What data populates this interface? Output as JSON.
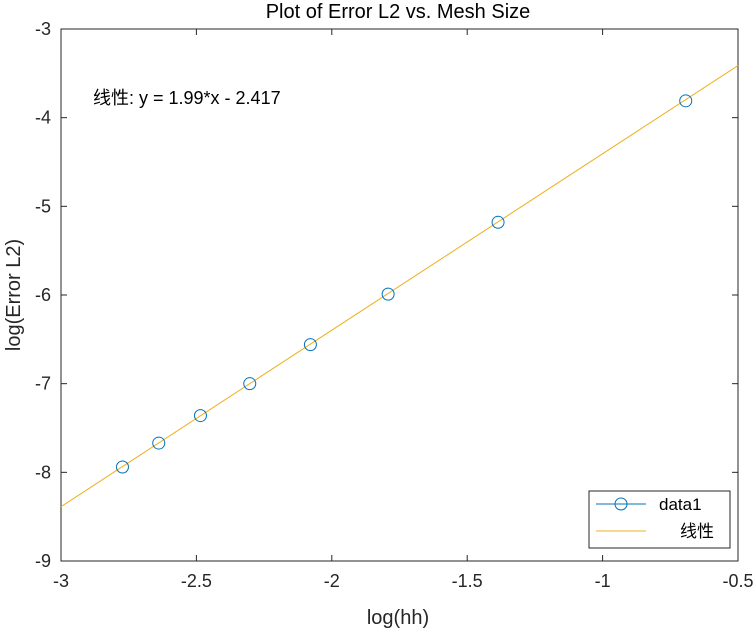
{
  "chart_data": {
    "type": "scatter",
    "title": "Plot of Error L2 vs. Mesh Size",
    "xlabel": "log(hh)",
    "ylabel": "log(Error L2)",
    "xlim": [
      -3,
      -0.5
    ],
    "ylim": [
      -9,
      -3
    ],
    "xticks": [
      -3,
      -2.5,
      -2,
      -1.5,
      -1,
      -0.5
    ],
    "yticks": [
      -9,
      -8,
      -7,
      -6,
      -5,
      -4,
      -3
    ],
    "xtick_labels": [
      "-3",
      "-2.5",
      "-2",
      "-1.5",
      "-1",
      "-0.5"
    ],
    "ytick_labels": [
      "-9",
      "-8",
      "-7",
      "-6",
      "-5",
      "-4",
      "-3"
    ],
    "grid": false,
    "legend_position": "bottom-right",
    "annotation": "线性:  y = 1.99*x - 2.417",
    "series": [
      {
        "name": "data1",
        "kind": "markers",
        "marker": "circle",
        "color": "#0072BD",
        "x": [
          -2.773,
          -2.639,
          -2.485,
          -2.303,
          -2.079,
          -1.792,
          -1.386,
          -0.693
        ],
        "y": [
          -7.94,
          -7.67,
          -7.36,
          -7.0,
          -6.56,
          -5.99,
          -5.18,
          -3.81
        ]
      },
      {
        "name": "线性",
        "kind": "line",
        "color": "#EDB120",
        "slope": 1.99,
        "intercept": -2.417,
        "x": [
          -3,
          -0.5
        ],
        "y": [
          -8.387,
          -3.412
        ]
      }
    ]
  }
}
